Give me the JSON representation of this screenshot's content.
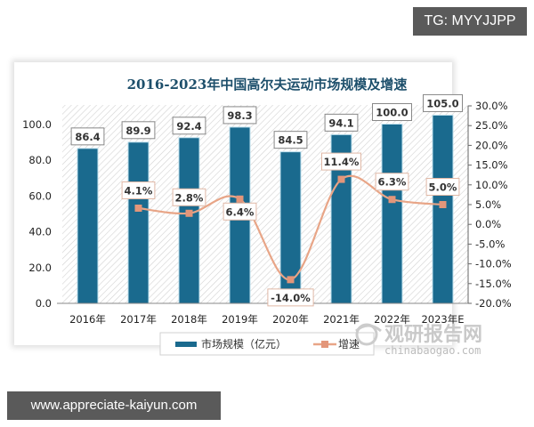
{
  "badges": {
    "top_right": "TG: MYYJJPP",
    "bottom_left": "www.appreciate-kaiyun.com"
  },
  "watermark": {
    "cn": "观研报告网",
    "en": "chinabaogao.com"
  },
  "colors": {
    "bar": "#1a6a8e",
    "line": "#e8a587",
    "marker": "#e3967a",
    "title": "#1d4f6b"
  },
  "chart_data": {
    "type": "bar",
    "title": "2016-2023年中国高尔夫运动市场规模及增速",
    "categories": [
      "2016年",
      "2017年",
      "2018年",
      "2019年",
      "2020年",
      "2021年",
      "2022年",
      "2023年E"
    ],
    "series": [
      {
        "name": "市场规模（亿元）",
        "type": "bar",
        "axis": "left",
        "values": [
          86.4,
          89.9,
          92.4,
          98.3,
          84.5,
          94.1,
          100.0,
          105.0
        ],
        "labels": [
          "86.4",
          "89.9",
          "92.4",
          "98.3",
          "84.5",
          "94.1",
          "100.0",
          "105.0"
        ]
      },
      {
        "name": "增速",
        "type": "line",
        "axis": "right",
        "values": [
          null,
          4.1,
          2.8,
          6.4,
          -14.0,
          11.4,
          6.3,
          5.0
        ],
        "labels": [
          "",
          "4.1%",
          "2.8%",
          "6.4%",
          "-14.0%",
          "11.4%",
          "6.3%",
          "5.0%"
        ]
      }
    ],
    "left_axis": {
      "ticks": [
        "0.0",
        "20.0",
        "40.0",
        "60.0",
        "80.0",
        "100.0"
      ],
      "range": [
        0,
        110
      ]
    },
    "right_axis": {
      "ticks": [
        "30.0%",
        "25.0%",
        "20.0%",
        "15.0%",
        "10.0%",
        "5.0%",
        "0.0%",
        "-5.0%",
        "-10.0%",
        "-15.0%",
        "-20.0%"
      ],
      "range": [
        -20,
        30
      ]
    },
    "legend": {
      "position": "bottom",
      "items": [
        "市场规模（亿元）",
        "增速"
      ]
    },
    "xlabel": "",
    "ylabel": "",
    "grid": false
  }
}
